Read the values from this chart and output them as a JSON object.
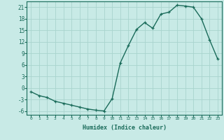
{
  "x": [
    0,
    1,
    2,
    3,
    4,
    5,
    6,
    7,
    8,
    9,
    10,
    11,
    12,
    13,
    14,
    15,
    16,
    17,
    18,
    19,
    20,
    21,
    22,
    23
  ],
  "y": [
    -1,
    -2,
    -2.5,
    -3.5,
    -4,
    -4.5,
    -5,
    -5.5,
    -5.8,
    -6,
    -2.8,
    6.5,
    11,
    15.2,
    17,
    15.5,
    19.2,
    19.7,
    21.5,
    21.3,
    21.0,
    18.0,
    12.5,
    7.5
  ],
  "line_color": "#1a6b5a",
  "bg_color": "#c8eae6",
  "grid_color": "#a8d4ce",
  "xlabel": "Humidex (Indice chaleur)",
  "xlim": [
    -0.5,
    23.5
  ],
  "ylim": [
    -7,
    22.5
  ],
  "yticks": [
    -6,
    -3,
    0,
    3,
    6,
    9,
    12,
    15,
    18,
    21
  ],
  "xticks": [
    0,
    1,
    2,
    3,
    4,
    5,
    6,
    7,
    8,
    9,
    10,
    11,
    12,
    13,
    14,
    15,
    16,
    17,
    18,
    19,
    20,
    21,
    22,
    23
  ],
  "marker": "+",
  "marker_size": 3.5,
  "line_width": 1.0,
  "tick_fontsize_x": 4.5,
  "tick_fontsize_y": 5.5,
  "xlabel_fontsize": 6.0
}
